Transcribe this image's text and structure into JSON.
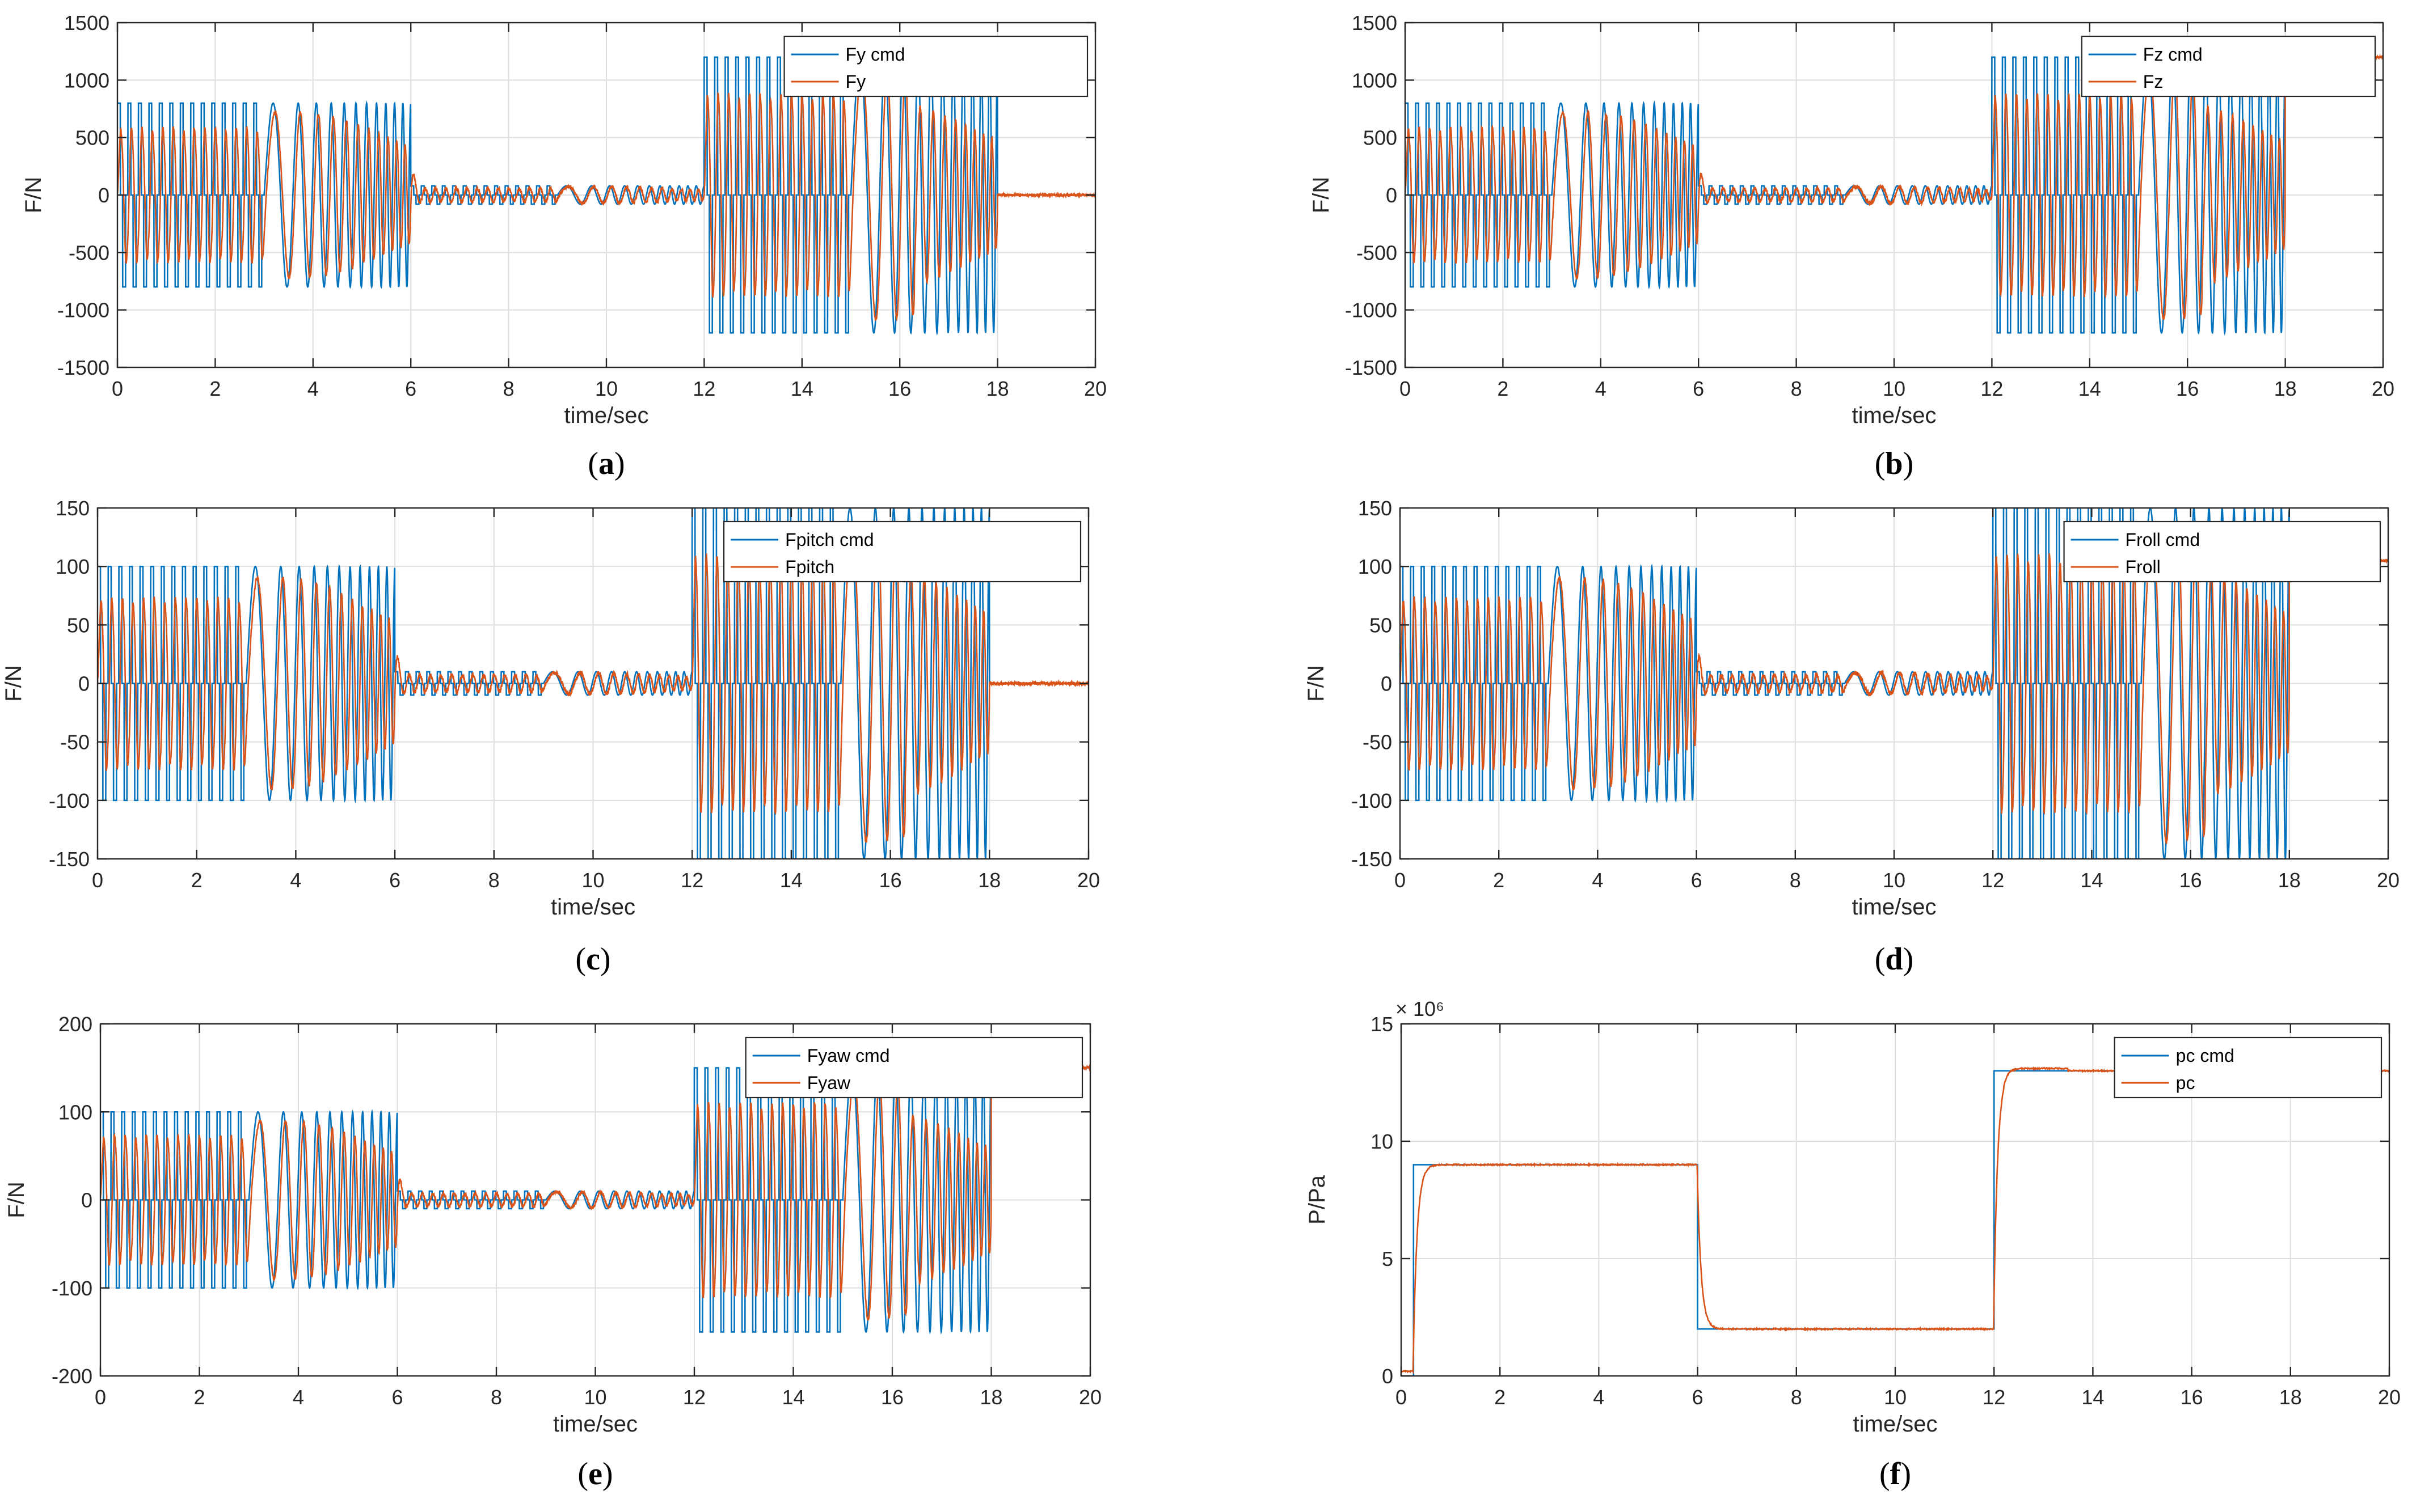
{
  "colors": {
    "cmd": "#0072BD",
    "meas": "#D95319",
    "grid": "#DFDFDF",
    "axis": "#262626"
  },
  "chart_data": [
    {
      "id": "a",
      "caption": "a",
      "type": "line",
      "title": "",
      "xlabel": "time/sec",
      "ylabel": "F/N",
      "xlim": [
        0,
        20
      ],
      "ylim": [
        -1500,
        1500
      ],
      "xticks": [
        0,
        2,
        4,
        6,
        8,
        10,
        12,
        14,
        16,
        18,
        20
      ],
      "yticks": [
        -1500,
        -1000,
        -500,
        0,
        500,
        1000,
        1500
      ],
      "yticklabels": [
        "-1500",
        "-1000",
        "-500",
        "0",
        "500",
        "1000",
        "1500"
      ],
      "legend_loc": "top-right",
      "legend_width": 0.31,
      "exponent": "",
      "kind": "force",
      "amp1": 800,
      "amp2": 80,
      "amp3": 1200,
      "tail": 0,
      "tail_start": 18,
      "series": [
        {
          "name": "Fy cmd",
          "role": "cmd"
        },
        {
          "name": "Fy",
          "role": "meas"
        }
      ]
    },
    {
      "id": "b",
      "caption": "b",
      "type": "line",
      "title": "",
      "xlabel": "time/sec",
      "ylabel": "F/N",
      "xlim": [
        0,
        20
      ],
      "ylim": [
        -1500,
        1500
      ],
      "xticks": [
        0,
        2,
        4,
        6,
        8,
        10,
        12,
        14,
        16,
        18,
        20
      ],
      "yticks": [
        -1500,
        -1000,
        -500,
        0,
        500,
        1000,
        1500
      ],
      "yticklabels": [
        "-1500",
        "-1000",
        "-500",
        "0",
        "500",
        "1000",
        "1500"
      ],
      "legend_loc": "top-right",
      "legend_width": 0.3,
      "exponent": "",
      "kind": "force",
      "amp1": 800,
      "amp2": 80,
      "amp3": 1200,
      "tail": 1200,
      "tail_start": 18,
      "series": [
        {
          "name": "Fz cmd",
          "role": "cmd"
        },
        {
          "name": "Fz",
          "role": "meas"
        }
      ]
    },
    {
      "id": "c",
      "caption": "c",
      "type": "line",
      "title": "",
      "xlabel": "time/sec",
      "ylabel": "F/N",
      "xlim": [
        0,
        20
      ],
      "ylim": [
        -150,
        150
      ],
      "xticks": [
        0,
        2,
        4,
        6,
        8,
        10,
        12,
        14,
        16,
        18,
        20
      ],
      "yticks": [
        -150,
        -100,
        -50,
        0,
        50,
        100,
        150
      ],
      "yticklabels": [
        "-150",
        "-100",
        "-50",
        "0",
        "50",
        "100",
        "150"
      ],
      "legend_loc": "top-right",
      "legend_width": 0.36,
      "exponent": "",
      "kind": "force",
      "amp1": 100,
      "amp2": 10,
      "amp3": 150,
      "tail": 0,
      "tail_start": 18,
      "series": [
        {
          "name": "Fpitch cmd",
          "role": "cmd"
        },
        {
          "name": "Fpitch",
          "role": "meas"
        }
      ]
    },
    {
      "id": "d",
      "caption": "d",
      "type": "line",
      "title": "",
      "xlabel": "time/sec",
      "ylabel": "F/N",
      "xlim": [
        0,
        20
      ],
      "ylim": [
        -150,
        150
      ],
      "xticks": [
        0,
        2,
        4,
        6,
        8,
        10,
        12,
        14,
        16,
        18,
        20
      ],
      "yticks": [
        -150,
        -100,
        -50,
        0,
        50,
        100,
        150
      ],
      "yticklabels": [
        "-150",
        "-100",
        "-50",
        "0",
        "50",
        "100",
        "150"
      ],
      "legend_loc": "top-right",
      "legend_width": 0.32,
      "exponent": "",
      "kind": "force",
      "amp1": 100,
      "amp2": 10,
      "amp3": 150,
      "tail": 105,
      "tail_start": 18,
      "series": [
        {
          "name": "Froll cmd",
          "role": "cmd"
        },
        {
          "name": "Froll",
          "role": "meas"
        }
      ]
    },
    {
      "id": "e",
      "caption": "e",
      "type": "line",
      "title": "",
      "xlabel": "time/sec",
      "ylabel": "F/N",
      "xlim": [
        0,
        20
      ],
      "ylim": [
        -200,
        200
      ],
      "xticks": [
        0,
        2,
        4,
        6,
        8,
        10,
        12,
        14,
        16,
        18,
        20
      ],
      "yticks": [
        -200,
        -100,
        0,
        100,
        200
      ],
      "yticklabels": [
        "-200",
        "-100",
        "0",
        "100",
        "200"
      ],
      "legend_loc": "top-right",
      "legend_width": 0.34,
      "exponent": "",
      "kind": "force",
      "amp1": 100,
      "amp2": 10,
      "amp3": 150,
      "tail": 150,
      "tail_start": 18,
      "series": [
        {
          "name": "Fyaw cmd",
          "role": "cmd"
        },
        {
          "name": "Fyaw",
          "role": "meas"
        }
      ]
    },
    {
      "id": "f",
      "caption": "f",
      "type": "line",
      "title": "",
      "xlabel": "time/sec",
      "ylabel": "P/Pa",
      "xlim": [
        0,
        20
      ],
      "ylim": [
        0,
        15
      ],
      "xticks": [
        0,
        2,
        4,
        6,
        8,
        10,
        12,
        14,
        16,
        18,
        20
      ],
      "yticks": [
        0,
        5,
        10,
        15
      ],
      "yticklabels": [
        "0",
        "5",
        "10",
        "15"
      ],
      "legend_loc": "top-right",
      "legend_width": 0.27,
      "exponent": "× 10⁶",
      "kind": "pressure",
      "pressure_steps": [
        {
          "t": 0,
          "v": 0
        },
        {
          "t": 0.25,
          "v": 9
        },
        {
          "t": 6,
          "v": 2
        },
        {
          "t": 12,
          "v": 13
        }
      ],
      "series": [
        {
          "name": "pc cmd",
          "role": "cmd"
        },
        {
          "name": "pc",
          "role": "meas"
        }
      ]
    }
  ]
}
